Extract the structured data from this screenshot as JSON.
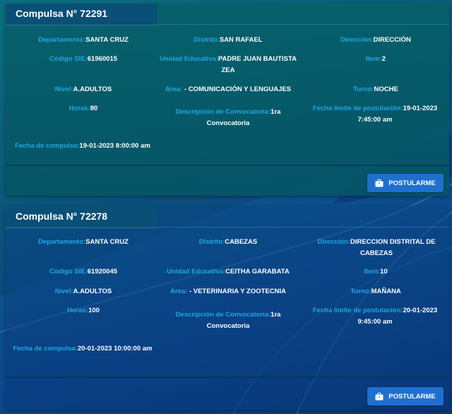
{
  "label_departamento": "Departamento:",
  "label_distrito": "Distrito:",
  "label_direccion": "Dirección:",
  "label_codigo_sie": "Código SIE:",
  "label_unidad": "Unidad Educativa:",
  "label_item": "Item:",
  "label_nivel": "Nivel:",
  "label_area": "Area:",
  "label_turno": "Turno:",
  "label_horas": "Horas:",
  "label_descripcion": "Descripción de Convocatoria:",
  "label_fecha_limite": "Fecha limite de postulación:",
  "label_fecha_compulsa": "Fecha de compulsa:",
  "colors": {
    "label": "#1ea7e1",
    "value": "#ffffff",
    "button": "#1f6fcf"
  },
  "compulsas": [
    {
      "title": "Compulsa N° 72291",
      "departamento": "SANTA CRUZ",
      "distrito": "SAN RAFAEL",
      "direccion": "DIRECCIÒN",
      "codigo_sie": "61960015",
      "unidad": "PADRE JUAN BAUTISTA ZEA",
      "item": "2",
      "nivel": "A.ADULTOS",
      "area": " - COMUNICACIÒN Y LENGUAJES",
      "turno": "NOCHE",
      "horas": "80",
      "descripcion": "1ra Convocatoria",
      "fecha_limite": "19-01-2023 7:45:00 am",
      "fecha_compulsa": "19-01-2023 8:00:00 am",
      "button_label": "POSTULARME",
      "button_icon": "briefcase-icon"
    },
    {
      "title": "Compulsa N° 72278",
      "departamento": "SANTA CRUZ",
      "distrito": "CABEZAS",
      "direccion": "DIRECCION DISTRITAL DE CABEZAS",
      "codigo_sie": "61920045",
      "unidad": "CEITHA GARABATA",
      "item": "10",
      "nivel": "A.ADULTOS",
      "area": " - VETERINARIA Y ZOOTECNIA",
      "turno": "MAÑANA",
      "horas": "100",
      "descripcion": "1ra Convocatoria",
      "fecha_limite": "20-01-2023 9:45:00 am",
      "fecha_compulsa": "20-01-2023 10:00:00 am",
      "button_label": "POSTULARME",
      "button_icon": "briefcase-icon"
    }
  ]
}
